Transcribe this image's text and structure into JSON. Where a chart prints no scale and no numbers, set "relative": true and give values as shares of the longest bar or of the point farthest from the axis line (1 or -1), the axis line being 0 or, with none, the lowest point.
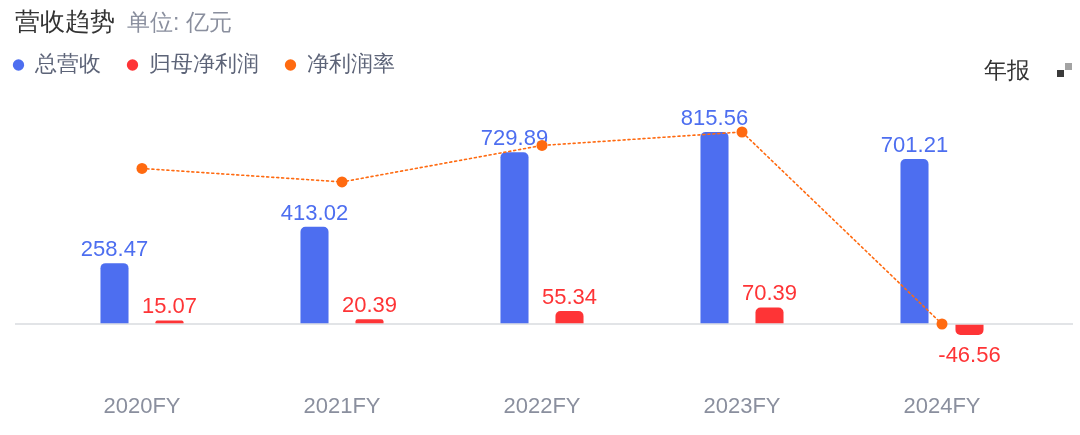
{
  "chart_data": [
    {
      "type": "bar",
      "title": "营收趋势",
      "subtitle": "单位: 亿元",
      "categories": [
        "2020FY",
        "2021FY",
        "2022FY",
        "2023FY",
        "2024FY"
      ],
      "series": [
        {
          "name": "总营收",
          "color": "#4d6ef0",
          "values": [
            258.47,
            413.02,
            729.89,
            815.56,
            701.21
          ]
        },
        {
          "name": "归母净利润",
          "color": "#fe3436",
          "values": [
            15.07,
            20.39,
            55.34,
            70.39,
            -46.56
          ]
        }
      ],
      "data_labels": true,
      "legend": "top left",
      "tick_labels": "x",
      "annotations": [
        "年报"
      ]
    },
    {
      "type": "line",
      "relative": true,
      "categories": [
        null,
        null,
        null,
        null,
        null
      ],
      "series": [
        {
          "name": "净利润率",
          "color": "#ff6a10",
          "values": [
            0.81,
            0.74,
            0.93,
            1,
            0
          ]
        }
      ],
      "marker": "circle",
      "line_style": "dotted",
      "legend": "top left"
    }
  ]
}
